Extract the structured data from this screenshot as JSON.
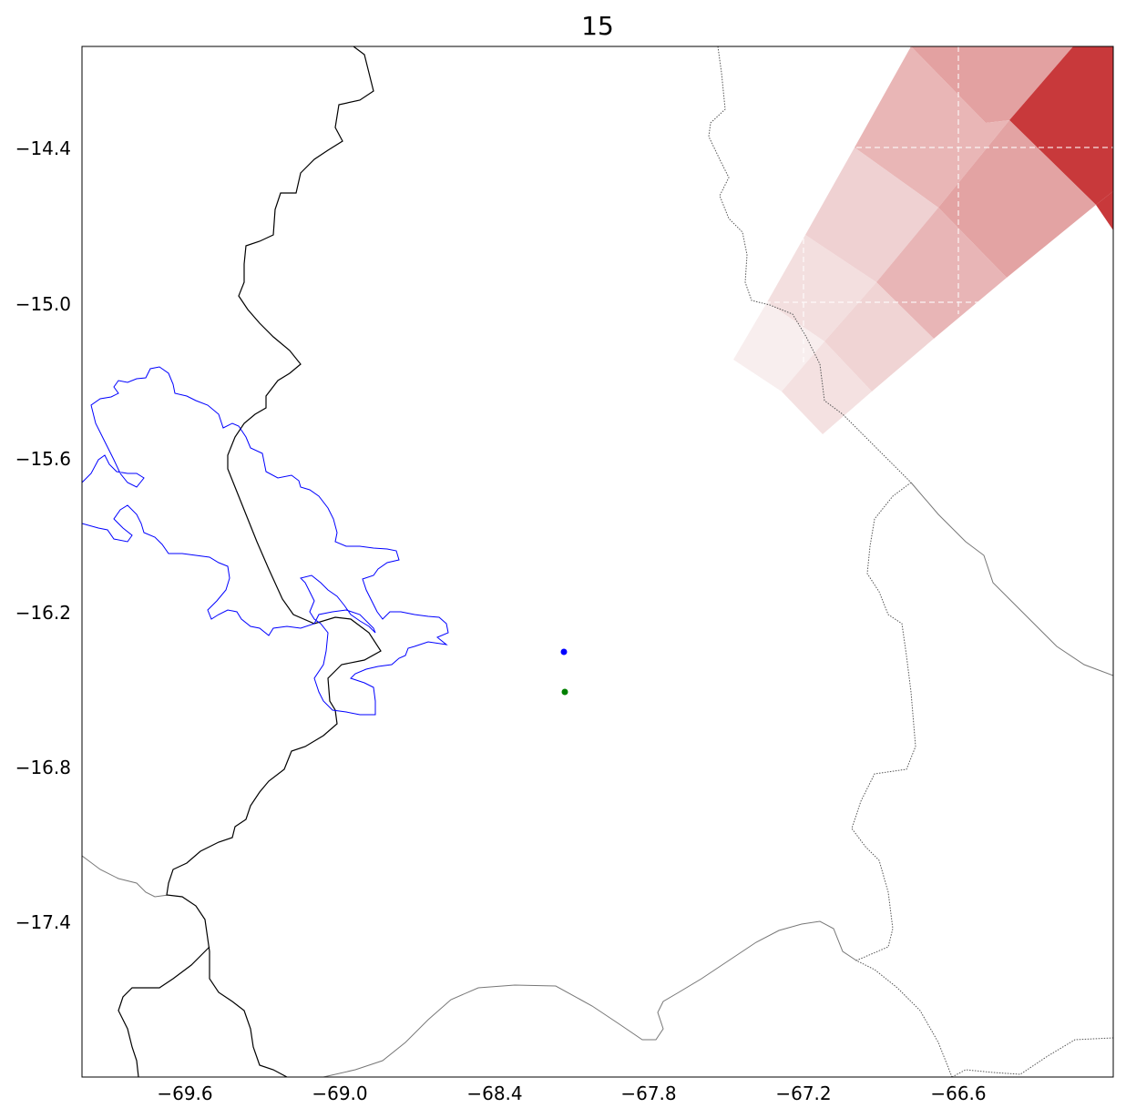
{
  "title": "15",
  "x_ticks": [
    "−69.6",
    "−69.0",
    "−68.4",
    "−67.8",
    "−67.2",
    "−66.6"
  ],
  "y_ticks": [
    "−14.4",
    "−15.0",
    "−15.6",
    "−16.2",
    "−16.8",
    "−17.4"
  ],
  "colors": {
    "river": "#0000ff",
    "border": "#000000",
    "dotted_boundary": "#555555",
    "point_blue": "#0000ff",
    "point_green": "#008000",
    "sector_dark": "#c8393b"
  },
  "points": [
    {
      "name": "blue-point",
      "lon": -67.92,
      "lat": -16.45
    },
    {
      "name": "green-point",
      "lon": -67.92,
      "lat": -16.61
    }
  ]
}
